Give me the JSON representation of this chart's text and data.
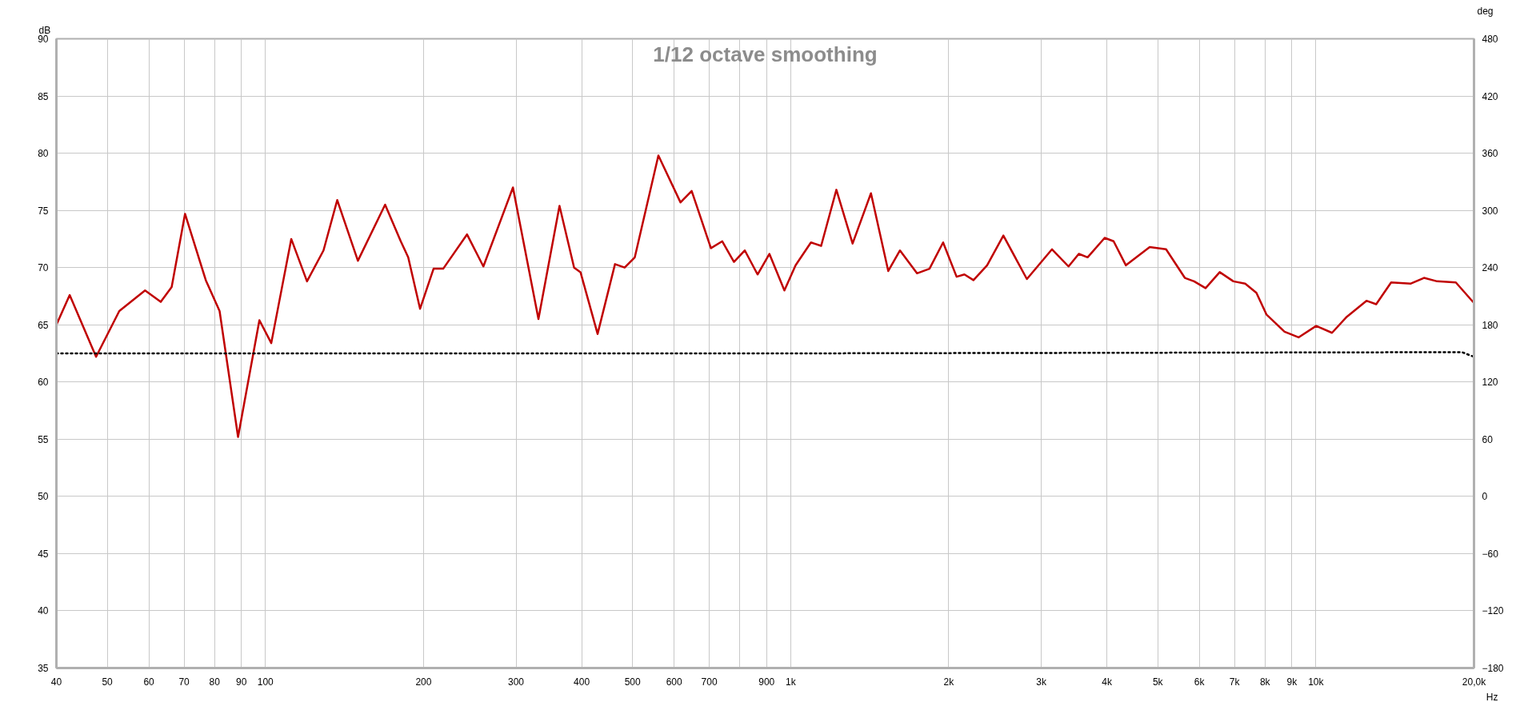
{
  "chart_data": {
    "type": "line",
    "title": "1/12 octave smoothing",
    "xlabel": "Hz",
    "ylabel": "dB",
    "y2label": "deg",
    "log": "x",
    "grid": true,
    "line_style": "solid",
    "marker": "none",
    "xlim": [
      40,
      20000
    ],
    "ylim": [
      35,
      90
    ],
    "y2lim": [
      -180,
      480
    ],
    "xticks": [
      40,
      50,
      60,
      70,
      80,
      90,
      100,
      200,
      300,
      400,
      500,
      600,
      700,
      {
        "value": 800,
        "label": null
      },
      900,
      {
        "value": 1000,
        "label": "1k"
      },
      {
        "value": 2000,
        "label": "2k"
      },
      {
        "value": 3000,
        "label": "3k"
      },
      {
        "value": 4000,
        "label": "4k"
      },
      {
        "value": 5000,
        "label": "5k"
      },
      {
        "value": 6000,
        "label": "6k"
      },
      {
        "value": 7000,
        "label": "7k"
      },
      {
        "value": 8000,
        "label": "8k"
      },
      {
        "value": 9000,
        "label": "9k"
      },
      {
        "value": 10000,
        "label": "10k"
      },
      {
        "value": 20000,
        "label": "20,0k"
      }
    ],
    "yticks": [
      35,
      40,
      45,
      50,
      55,
      60,
      65,
      70,
      75,
      80,
      85,
      90
    ],
    "y2ticks": [
      -180,
      -120,
      -60,
      0,
      60,
      120,
      180,
      240,
      300,
      360,
      420,
      480
    ],
    "series": [
      {
        "color": "#c00000",
        "x": [
          40,
          42.4,
          47.6,
          52.7,
          59,
          63.2,
          66.3,
          70.3,
          77,
          81.8,
          88.7,
          97.4,
          102.6,
          112,
          120,
          129,
          137,
          150,
          169,
          181,
          187,
          197,
          209,
          218,
          242,
          260,
          296,
          331,
          363,
          387,
          398,
          429,
          463,
          483,
          505,
          560,
          617,
          648,
          705,
          741,
          780,
          818,
          865,
          911,
          973,
          1022,
          1093,
          1143,
          1222,
          1312,
          1422,
          1534,
          1615,
          1740,
          1838,
          1951,
          2070,
          2142,
          2229,
          2366,
          2541,
          2817,
          3145,
          3381,
          3537,
          3676,
          3962,
          4120,
          4348,
          4826,
          5185,
          5630,
          5863,
          6166,
          6560,
          6966,
          7335,
          7705,
          8051,
          8716,
          9268,
          10013,
          10733,
          11452,
          12483,
          13026,
          13907,
          15163,
          16064,
          17015,
          18469,
          20000
        ],
        "values": [
          65.0,
          67.6,
          62.2,
          66.2,
          68.0,
          67.0,
          68.3,
          74.7,
          68.9,
          66.2,
          55.2,
          65.4,
          63.4,
          72.5,
          68.8,
          71.5,
          75.9,
          70.6,
          75.5,
          72.3,
          70.9,
          66.4,
          69.9,
          69.9,
          72.9,
          70.1,
          77.0,
          65.5,
          75.4,
          70.0,
          69.6,
          64.2,
          70.3,
          70.0,
          70.9,
          79.8,
          75.7,
          76.7,
          71.7,
          72.3,
          70.5,
          71.5,
          69.4,
          71.2,
          68.0,
          70.2,
          72.2,
          71.9,
          76.8,
          72.1,
          76.5,
          69.7,
          71.5,
          69.5,
          69.9,
          72.2,
          69.2,
          69.4,
          68.9,
          70.2,
          72.8,
          69.0,
          71.6,
          70.1,
          71.2,
          70.9,
          72.6,
          72.3,
          70.2,
          71.8,
          71.6,
          69.1,
          68.8,
          68.2,
          69.6,
          68.8,
          68.6,
          67.8,
          65.9,
          64.4,
          63.9,
          64.9,
          64.3,
          65.7,
          67.1,
          66.8,
          68.7,
          68.6,
          69.1,
          68.8,
          68.7,
          66.9
        ]
      },
      {
        "color": "#000000",
        "line_style": "dotted",
        "x": [
          40,
          1000,
          15000,
          19000,
          20000
        ],
        "values": [
          62.5,
          62.5,
          62.6,
          62.6,
          62.2
        ]
      }
    ]
  }
}
